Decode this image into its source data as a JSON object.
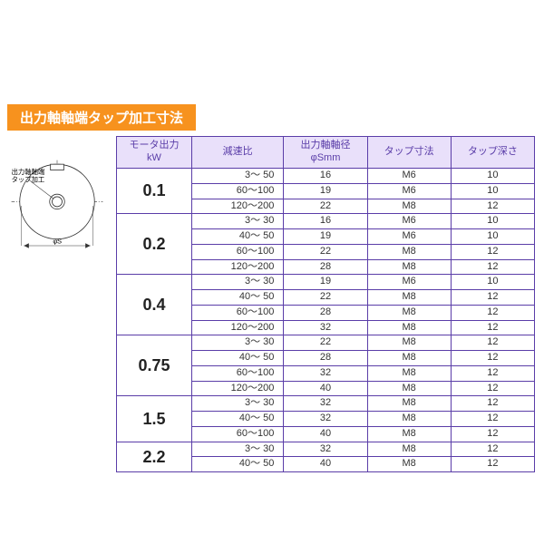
{
  "colors": {
    "banner_bg": "#f7921e",
    "banner_text": "#ffffff",
    "border": "#5a3da8",
    "header_bg": "#e9e0fa",
    "header_text": "#5a3da8"
  },
  "banner": {
    "text": "出力軸軸端タップ加工寸法"
  },
  "diagram": {
    "label": "出力軸軸端\nタップ加工",
    "diameter_symbol": "φS"
  },
  "table": {
    "columns": [
      "モータ出力\nkW",
      "減速比",
      "出力軸軸径\nφSmm",
      "タップ寸法",
      "タップ深さ"
    ],
    "groups": [
      {
        "kw": "0.1",
        "rows": [
          {
            "ratio": "3～ 50",
            "d": "16",
            "tap": "M6",
            "depth": "10"
          },
          {
            "ratio": "60～100",
            "d": "19",
            "tap": "M6",
            "depth": "10"
          },
          {
            "ratio": "120～200",
            "d": "22",
            "tap": "M8",
            "depth": "12"
          }
        ]
      },
      {
        "kw": "0.2",
        "rows": [
          {
            "ratio": "3～ 30",
            "d": "16",
            "tap": "M6",
            "depth": "10"
          },
          {
            "ratio": "40～ 50",
            "d": "19",
            "tap": "M6",
            "depth": "10"
          },
          {
            "ratio": "60～100",
            "d": "22",
            "tap": "M8",
            "depth": "12"
          },
          {
            "ratio": "120～200",
            "d": "28",
            "tap": "M8",
            "depth": "12"
          }
        ]
      },
      {
        "kw": "0.4",
        "rows": [
          {
            "ratio": "3～ 30",
            "d": "19",
            "tap": "M6",
            "depth": "10"
          },
          {
            "ratio": "40～ 50",
            "d": "22",
            "tap": "M8",
            "depth": "12"
          },
          {
            "ratio": "60～100",
            "d": "28",
            "tap": "M8",
            "depth": "12"
          },
          {
            "ratio": "120～200",
            "d": "32",
            "tap": "M8",
            "depth": "12"
          }
        ]
      },
      {
        "kw": "0.75",
        "rows": [
          {
            "ratio": "3～ 30",
            "d": "22",
            "tap": "M8",
            "depth": "12"
          },
          {
            "ratio": "40～ 50",
            "d": "28",
            "tap": "M8",
            "depth": "12"
          },
          {
            "ratio": "60～100",
            "d": "32",
            "tap": "M8",
            "depth": "12"
          },
          {
            "ratio": "120～200",
            "d": "40",
            "tap": "M8",
            "depth": "12"
          }
        ]
      },
      {
        "kw": "1.5",
        "rows": [
          {
            "ratio": "3～ 30",
            "d": "32",
            "tap": "M8",
            "depth": "12"
          },
          {
            "ratio": "40～ 50",
            "d": "32",
            "tap": "M8",
            "depth": "12"
          },
          {
            "ratio": "60～100",
            "d": "40",
            "tap": "M8",
            "depth": "12"
          }
        ]
      },
      {
        "kw": "2.2",
        "rows": [
          {
            "ratio": "3～ 30",
            "d": "32",
            "tap": "M8",
            "depth": "12"
          },
          {
            "ratio": "40～ 50",
            "d": "40",
            "tap": "M8",
            "depth": "12"
          }
        ]
      }
    ]
  }
}
